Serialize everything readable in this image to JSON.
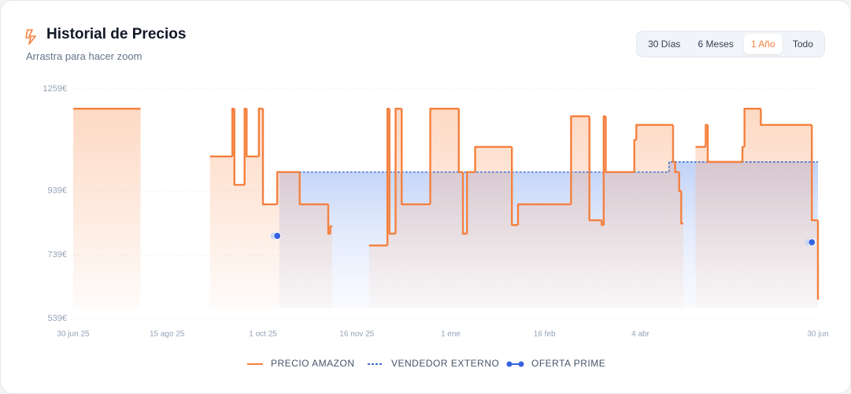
{
  "header": {
    "title": "Historial de Precios",
    "subtitle": "Arrastra para hacer zoom"
  },
  "range_buttons": {
    "options": [
      "30 Días",
      "6 Meses",
      "1 Año",
      "Todo"
    ],
    "active": 2
  },
  "chart_data": {
    "type": "line",
    "step": true,
    "grid": true,
    "legend": "bottom",
    "xlim": [
      "2025-06-30",
      "2026-06-30"
    ],
    "xticks": [
      {
        "value": "2025-06-30",
        "label": "30 jun 25"
      },
      {
        "value": "2025-08-15",
        "label": "15 ago 25"
      },
      {
        "value": "2025-10-01",
        "label": "1 oct 25"
      },
      {
        "value": "2025-11-16",
        "label": "16 nov 25"
      },
      {
        "value": "2026-01-01",
        "label": "1 ene"
      },
      {
        "value": "2026-02-16",
        "label": "16 feb"
      },
      {
        "value": "2026-04-04",
        "label": "4 abr"
      },
      {
        "value": "2026-06-30",
        "label": "30 jun"
      }
    ],
    "ylim": [
      539,
      1259
    ],
    "yticks": [
      {
        "value": 539,
        "label": "539€"
      },
      {
        "value": 739,
        "label": "739€"
      },
      {
        "value": 939,
        "label": "939€"
      },
      {
        "value": 1259,
        "label": "1259€"
      }
    ],
    "series": [
      {
        "name": "PRECIO AMAZON",
        "color": "#f5803e",
        "style": "solid",
        "x": [
          "2025-06-30",
          "2025-08-02",
          "2025-09-05",
          "2025-09-16",
          "2025-09-17",
          "2025-09-22",
          "2025-09-23",
          "2025-09-29",
          "2025-10-01",
          "2025-10-08",
          "2025-10-19",
          "2025-11-02",
          "2025-11-03",
          "2025-11-04",
          "2025-11-22",
          "2025-12-01",
          "2025-12-02",
          "2025-12-05",
          "2025-12-08",
          "2025-12-22",
          "2026-01-05",
          "2026-01-07",
          "2026-01-09",
          "2026-01-13",
          "2026-01-31",
          "2026-02-03",
          "2026-03-01",
          "2026-03-10",
          "2026-03-16",
          "2026-03-17",
          "2026-03-18",
          "2026-04-01",
          "2026-04-02",
          "2026-04-20",
          "2026-04-21",
          "2026-04-23",
          "2026-04-24",
          "2026-04-25",
          "2026-05-01",
          "2026-05-06",
          "2026-05-07",
          "2026-05-24",
          "2026-05-25",
          "2026-06-02",
          "2026-06-27",
          "2026-06-30"
        ],
        "values": [
          1197,
          null,
          1047,
          1197,
          958,
          1197,
          1047,
          1197,
          897,
          998,
          897,
          805,
          828,
          null,
          768,
          1197,
          805,
          1197,
          897,
          1197,
          998,
          805,
          998,
          1077,
          832,
          897,
          1173,
          847,
          832,
          1173,
          998,
          1099,
          1146,
          1030,
          998,
          939,
          837,
          null,
          1077,
          1146,
          1030,
          1077,
          1197,
          1146,
          847,
          598
        ]
      },
      {
        "name": "VENDEDOR EXTERNO",
        "color": "#3b6fd8",
        "style": "dashed",
        "x": [
          "2025-10-09",
          "2026-04-18",
          "2026-06-30"
        ],
        "values": [
          998,
          1030,
          1030
        ]
      },
      {
        "name": "OFERTA PRIME",
        "color": "#3563e0",
        "style": "points",
        "x": [
          "2025-10-08",
          "2026-06-27"
        ],
        "values": [
          798,
          778
        ]
      }
    ]
  }
}
